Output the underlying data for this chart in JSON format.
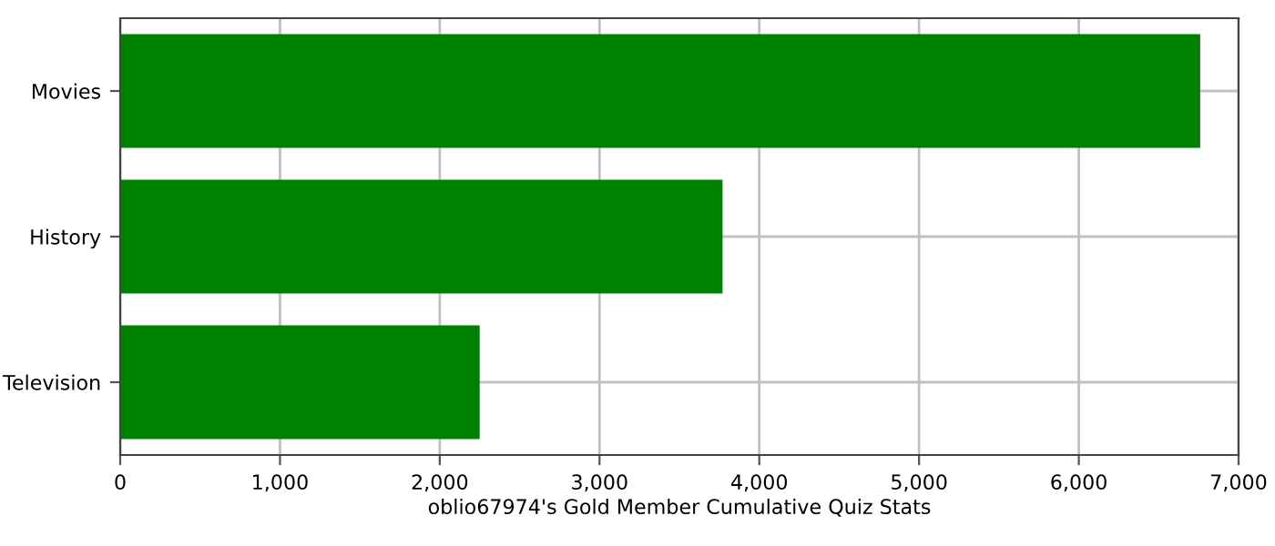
{
  "chart_data": {
    "type": "bar",
    "orientation": "horizontal",
    "xlabel": "oblio67974's Gold Member Cumulative Quiz Stats",
    "categories": [
      "Movies",
      "History",
      "Television"
    ],
    "values": [
      6760,
      3770,
      2250
    ],
    "color": "#008000",
    "xlim": [
      0,
      7000
    ],
    "xticks": [
      {
        "value": 0,
        "label": "0"
      },
      {
        "value": 1000,
        "label": "1,000"
      },
      {
        "value": 2000,
        "label": "2,000"
      },
      {
        "value": 3000,
        "label": "3,000"
      },
      {
        "value": 4000,
        "label": "4,000"
      },
      {
        "value": 5000,
        "label": "5,000"
      },
      {
        "value": 6000,
        "label": "6,000"
      },
      {
        "value": 7000,
        "label": "7,000"
      }
    ],
    "grid": true
  }
}
